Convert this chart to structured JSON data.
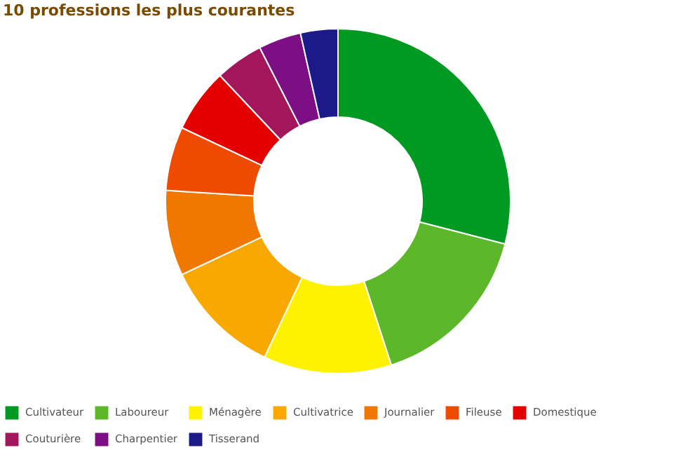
{
  "chart_data": {
    "type": "donut",
    "title": "10 professions les plus courantes",
    "categories": [
      "Cultivateur",
      "Laboureur",
      "Ménagère",
      "Cultivatrice",
      "Journalier",
      "Fileuse",
      "Domestique",
      "Couturière",
      "Charpentier",
      "Tisserand"
    ],
    "values": [
      29,
      16,
      12,
      11,
      8,
      6,
      6,
      4.5,
      4,
      3.5
    ],
    "colors": [
      "#009a22",
      "#5cb82a",
      "#fff200",
      "#f9a800",
      "#f07800",
      "#ee4b00",
      "#e50000",
      "#a3165c",
      "#7d0f85",
      "#1c1a8a"
    ],
    "legend": "bottom"
  }
}
